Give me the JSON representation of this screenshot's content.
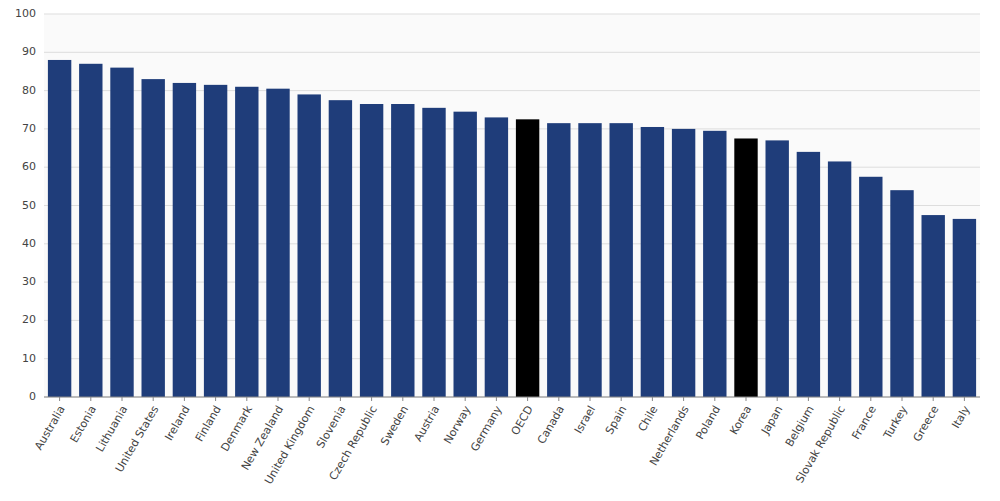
{
  "chart_data": {
    "type": "bar",
    "categories": [
      "Australia",
      "Estonia",
      "Lithuania",
      "United States",
      "Ireland",
      "Finland",
      "Denmark",
      "New Zealand",
      "United Kingdom",
      "Slovenia",
      "Czech Republic",
      "Sweden",
      "Austria",
      "Norway",
      "Germany",
      "OECD",
      "Canada",
      "Israel",
      "Spain",
      "Chile",
      "Netherlands",
      "Poland",
      "Korea",
      "Japan",
      "Belgium",
      "Slovak Republic",
      "France",
      "Turkey",
      "Greece",
      "Italy"
    ],
    "values": [
      88,
      87,
      86,
      83,
      82,
      81.5,
      81,
      80.5,
      79,
      77.5,
      76.5,
      76.5,
      75.5,
      74.5,
      73,
      72.5,
      71.5,
      71.5,
      71.5,
      70.5,
      70,
      69.5,
      67.5,
      67,
      64,
      61.5,
      57.5,
      54,
      47.5,
      46.5
    ],
    "colors": [
      "#1f3d7a",
      "#1f3d7a",
      "#1f3d7a",
      "#1f3d7a",
      "#1f3d7a",
      "#1f3d7a",
      "#1f3d7a",
      "#1f3d7a",
      "#1f3d7a",
      "#1f3d7a",
      "#1f3d7a",
      "#1f3d7a",
      "#1f3d7a",
      "#1f3d7a",
      "#1f3d7a",
      "#000000",
      "#1f3d7a",
      "#1f3d7a",
      "#1f3d7a",
      "#1f3d7a",
      "#1f3d7a",
      "#1f3d7a",
      "#000000",
      "#1f3d7a",
      "#1f3d7a",
      "#1f3d7a",
      "#1f3d7a",
      "#1f3d7a",
      "#1f3d7a",
      "#1f3d7a"
    ],
    "ylim": [
      0,
      100
    ],
    "yticks": [
      0,
      10,
      20,
      30,
      40,
      50,
      60,
      70,
      80,
      90,
      100
    ],
    "grid": true
  }
}
